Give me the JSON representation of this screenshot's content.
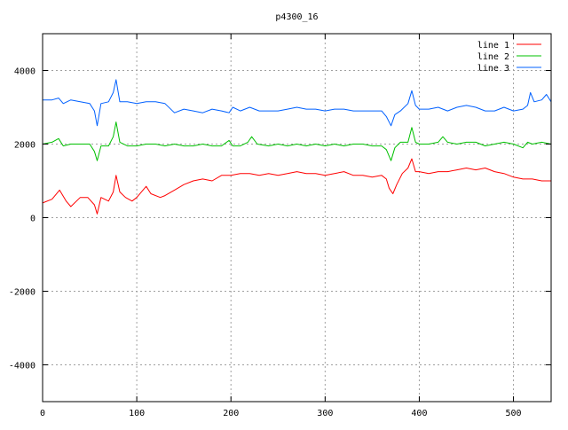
{
  "chart_data": {
    "type": "line",
    "title": "p4300_16",
    "xlabel": "",
    "ylabel": "",
    "xlim": [
      0,
      540
    ],
    "ylim": [
      -5000,
      5000
    ],
    "grid": true,
    "legend_position": "top-right",
    "x_ticks": [
      "0",
      "100",
      "200",
      "300",
      "400",
      "500"
    ],
    "x_tick_values": [
      0,
      100,
      200,
      300,
      400,
      500
    ],
    "y_ticks": [
      "-4000",
      "-2000",
      "0",
      "2000",
      "4000"
    ],
    "y_tick_values": [
      -4000,
      -2000,
      0,
      2000,
      4000
    ],
    "series": [
      {
        "name": "line 1",
        "color": "#ff0000",
        "points": [
          [
            0,
            400
          ],
          [
            10,
            500
          ],
          [
            18,
            750
          ],
          [
            25,
            450
          ],
          [
            30,
            300
          ],
          [
            40,
            550
          ],
          [
            48,
            550
          ],
          [
            55,
            350
          ],
          [
            58,
            100
          ],
          [
            62,
            550
          ],
          [
            70,
            450
          ],
          [
            75,
            700
          ],
          [
            78,
            1150
          ],
          [
            82,
            700
          ],
          [
            88,
            550
          ],
          [
            95,
            450
          ],
          [
            100,
            550
          ],
          [
            110,
            850
          ],
          [
            115,
            650
          ],
          [
            125,
            550
          ],
          [
            130,
            600
          ],
          [
            140,
            750
          ],
          [
            150,
            900
          ],
          [
            160,
            1000
          ],
          [
            170,
            1050
          ],
          [
            180,
            1000
          ],
          [
            190,
            1150
          ],
          [
            200,
            1150
          ],
          [
            210,
            1200
          ],
          [
            220,
            1200
          ],
          [
            230,
            1150
          ],
          [
            240,
            1200
          ],
          [
            250,
            1150
          ],
          [
            260,
            1200
          ],
          [
            270,
            1250
          ],
          [
            280,
            1200
          ],
          [
            290,
            1200
          ],
          [
            300,
            1150
          ],
          [
            310,
            1200
          ],
          [
            320,
            1250
          ],
          [
            330,
            1150
          ],
          [
            340,
            1150
          ],
          [
            350,
            1100
          ],
          [
            360,
            1150
          ],
          [
            365,
            1050
          ],
          [
            368,
            800
          ],
          [
            372,
            650
          ],
          [
            376,
            900
          ],
          [
            382,
            1200
          ],
          [
            388,
            1350
          ],
          [
            392,
            1600
          ],
          [
            396,
            1250
          ],
          [
            400,
            1250
          ],
          [
            410,
            1200
          ],
          [
            420,
            1250
          ],
          [
            430,
            1250
          ],
          [
            440,
            1300
          ],
          [
            450,
            1350
          ],
          [
            460,
            1300
          ],
          [
            470,
            1350
          ],
          [
            480,
            1250
          ],
          [
            490,
            1200
          ],
          [
            500,
            1100
          ],
          [
            510,
            1050
          ],
          [
            520,
            1050
          ],
          [
            530,
            1000
          ],
          [
            540,
            1000
          ]
        ]
      },
      {
        "name": "line 2",
        "color": "#00c000",
        "points": [
          [
            0,
            2000
          ],
          [
            10,
            2050
          ],
          [
            17,
            2150
          ],
          [
            22,
            1950
          ],
          [
            30,
            2000
          ],
          [
            40,
            2000
          ],
          [
            50,
            2000
          ],
          [
            55,
            1800
          ],
          [
            58,
            1550
          ],
          [
            62,
            1950
          ],
          [
            70,
            1950
          ],
          [
            75,
            2200
          ],
          [
            78,
            2600
          ],
          [
            82,
            2050
          ],
          [
            90,
            1950
          ],
          [
            100,
            1950
          ],
          [
            110,
            2000
          ],
          [
            120,
            2000
          ],
          [
            130,
            1950
          ],
          [
            140,
            2000
          ],
          [
            150,
            1950
          ],
          [
            160,
            1950
          ],
          [
            170,
            2000
          ],
          [
            180,
            1950
          ],
          [
            190,
            1950
          ],
          [
            198,
            2100
          ],
          [
            202,
            1950
          ],
          [
            210,
            1950
          ],
          [
            218,
            2050
          ],
          [
            222,
            2200
          ],
          [
            228,
            2000
          ],
          [
            240,
            1950
          ],
          [
            250,
            2000
          ],
          [
            260,
            1950
          ],
          [
            270,
            2000
          ],
          [
            280,
            1950
          ],
          [
            290,
            2000
          ],
          [
            300,
            1950
          ],
          [
            310,
            2000
          ],
          [
            320,
            1950
          ],
          [
            330,
            2000
          ],
          [
            340,
            2000
          ],
          [
            350,
            1950
          ],
          [
            360,
            1950
          ],
          [
            365,
            1850
          ],
          [
            370,
            1550
          ],
          [
            374,
            1900
          ],
          [
            380,
            2050
          ],
          [
            388,
            2050
          ],
          [
            392,
            2450
          ],
          [
            396,
            2050
          ],
          [
            400,
            2000
          ],
          [
            410,
            2000
          ],
          [
            420,
            2050
          ],
          [
            425,
            2200
          ],
          [
            430,
            2050
          ],
          [
            440,
            2000
          ],
          [
            450,
            2050
          ],
          [
            460,
            2050
          ],
          [
            470,
            1950
          ],
          [
            480,
            2000
          ],
          [
            490,
            2050
          ],
          [
            500,
            2000
          ],
          [
            510,
            1900
          ],
          [
            515,
            2050
          ],
          [
            520,
            2000
          ],
          [
            530,
            2050
          ],
          [
            540,
            2000
          ]
        ]
      },
      {
        "name": "line 3",
        "color": "#0060ff",
        "points": [
          [
            0,
            3200
          ],
          [
            10,
            3200
          ],
          [
            17,
            3250
          ],
          [
            22,
            3100
          ],
          [
            30,
            3200
          ],
          [
            40,
            3150
          ],
          [
            50,
            3100
          ],
          [
            55,
            2900
          ],
          [
            58,
            2500
          ],
          [
            62,
            3100
          ],
          [
            70,
            3150
          ],
          [
            75,
            3400
          ],
          [
            78,
            3750
          ],
          [
            82,
            3150
          ],
          [
            90,
            3150
          ],
          [
            100,
            3100
          ],
          [
            110,
            3150
          ],
          [
            120,
            3150
          ],
          [
            130,
            3100
          ],
          [
            140,
            2850
          ],
          [
            150,
            2950
          ],
          [
            160,
            2900
          ],
          [
            170,
            2850
          ],
          [
            180,
            2950
          ],
          [
            190,
            2900
          ],
          [
            198,
            2850
          ],
          [
            202,
            3000
          ],
          [
            210,
            2900
          ],
          [
            220,
            3000
          ],
          [
            230,
            2900
          ],
          [
            240,
            2900
          ],
          [
            250,
            2900
          ],
          [
            260,
            2950
          ],
          [
            270,
            3000
          ],
          [
            280,
            2950
          ],
          [
            290,
            2950
          ],
          [
            300,
            2900
          ],
          [
            310,
            2950
          ],
          [
            320,
            2950
          ],
          [
            330,
            2900
          ],
          [
            340,
            2900
          ],
          [
            350,
            2900
          ],
          [
            360,
            2900
          ],
          [
            365,
            2750
          ],
          [
            370,
            2500
          ],
          [
            374,
            2800
          ],
          [
            380,
            2900
          ],
          [
            388,
            3100
          ],
          [
            392,
            3450
          ],
          [
            396,
            3050
          ],
          [
            400,
            2950
          ],
          [
            410,
            2950
          ],
          [
            420,
            3000
          ],
          [
            430,
            2900
          ],
          [
            440,
            3000
          ],
          [
            450,
            3050
          ],
          [
            460,
            3000
          ],
          [
            470,
            2900
          ],
          [
            480,
            2900
          ],
          [
            490,
            3000
          ],
          [
            500,
            2900
          ],
          [
            510,
            2950
          ],
          [
            515,
            3050
          ],
          [
            518,
            3400
          ],
          [
            522,
            3150
          ],
          [
            530,
            3200
          ],
          [
            535,
            3350
          ],
          [
            540,
            3150
          ]
        ]
      }
    ]
  }
}
